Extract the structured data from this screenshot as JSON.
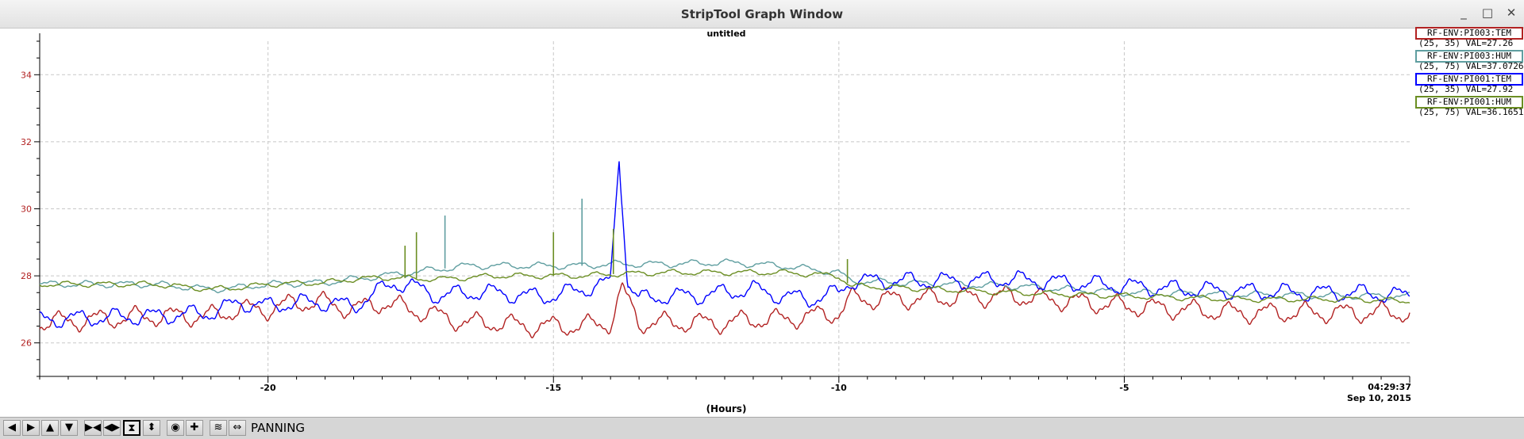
{
  "window": {
    "title": "StripTool Graph Window",
    "controls": {
      "minimize": "_",
      "maximize": "□",
      "close": "✕"
    }
  },
  "graph": {
    "title": "untitled",
    "xlabel": "(Hours)",
    "time_readout": {
      "time": "04:29:37",
      "date": "Sep 10, 2015"
    }
  },
  "legend": [
    {
      "name": "RF-ENV:PI003:TEM",
      "range": "(25, 35)",
      "value": "VAL=27.26",
      "color": "#b22222"
    },
    {
      "name": "RF-ENV:PI003:HUM",
      "range": "(25, 75)",
      "value": "VAL=37.0726",
      "color": "#5f9ea0"
    },
    {
      "name": "RF-ENV:PI001:TEM",
      "range": "(25, 35)",
      "value": "VAL=27.92",
      "color": "#0000ff"
    },
    {
      "name": "RF-ENV:PI001:HUM",
      "range": "(25, 75)",
      "value": "VAL=36.1651",
      "color": "#6b8e23"
    }
  ],
  "toolbar": {
    "buttons": [
      {
        "name": "pan-left-button",
        "glyph": "◀"
      },
      {
        "name": "pan-right-button",
        "glyph": "▶"
      },
      {
        "name": "pan-up-button",
        "glyph": "▲"
      },
      {
        "name": "pan-down-button",
        "glyph": "▼"
      },
      {
        "name": "zoom-in-x-button",
        "glyph": "▶◀"
      },
      {
        "name": "zoom-out-x-button",
        "glyph": "◀▶"
      },
      {
        "name": "zoom-in-y-button",
        "glyph": "⧗"
      },
      {
        "name": "zoom-out-y-button",
        "glyph": "⬍"
      },
      {
        "name": "auto-scale-button",
        "glyph": "◉"
      },
      {
        "name": "reset-button",
        "glyph": "✚"
      },
      {
        "name": "toggle-refresh-button",
        "glyph": "≋"
      },
      {
        "name": "pan-mode-button",
        "glyph": "⇔"
      }
    ],
    "active_button": "zoom-in-y-button",
    "mode_label": "PANNING"
  },
  "chart_data": {
    "type": "line",
    "xlabel": "(Hours)",
    "xlim": [
      -24,
      0
    ],
    "ylim": [
      25,
      35
    ],
    "x_ticks": [
      -20,
      -15,
      -10,
      -5
    ],
    "y_ticks": [
      26,
      28,
      30,
      32,
      34
    ],
    "y_tick_color": "#b22222",
    "grid": true,
    "series": [
      {
        "name": "RF-ENV:PI003:TEM",
        "color": "#b22222",
        "points": [
          [
            -24,
            26.6
          ],
          [
            -22,
            26.8
          ],
          [
            -21,
            26.8
          ],
          [
            -20.5,
            27.0
          ],
          [
            -20,
            27.0
          ],
          [
            -19.5,
            27.2
          ],
          [
            -19,
            27.2
          ],
          [
            -18.5,
            27.0
          ],
          [
            -18,
            27.2
          ],
          [
            -17.5,
            27.0
          ],
          [
            -17,
            26.8
          ],
          [
            -16.5,
            26.6
          ],
          [
            -16,
            26.6
          ],
          [
            -15.5,
            26.5
          ],
          [
            -15,
            26.5
          ],
          [
            -14.5,
            26.5
          ],
          [
            -14,
            26.6
          ],
          [
            -13.8,
            27.6
          ],
          [
            -13.5,
            26.6
          ],
          [
            -13,
            26.6
          ],
          [
            -12.5,
            26.6
          ],
          [
            -12,
            26.6
          ],
          [
            -11.5,
            26.7
          ],
          [
            -11,
            26.7
          ],
          [
            -10.5,
            26.8
          ],
          [
            -10,
            26.9
          ],
          [
            -9.8,
            27.3
          ],
          [
            -9,
            27.3
          ],
          [
            -7,
            27.4
          ],
          [
            -5,
            27.1
          ],
          [
            -4,
            27.0
          ],
          [
            -3,
            26.9
          ],
          [
            -2,
            26.9
          ],
          [
            -1,
            26.9
          ],
          [
            0,
            26.9
          ]
        ],
        "wave_amp": 0.35
      },
      {
        "name": "RF-ENV:PI003:HUM",
        "color": "#5f9ea0",
        "points": [
          [
            -24,
            27.75
          ],
          [
            -22,
            27.75
          ],
          [
            -21,
            27.6
          ],
          [
            -20.5,
            27.65
          ],
          [
            -20,
            27.75
          ],
          [
            -19,
            27.8
          ],
          [
            -18.5,
            27.9
          ],
          [
            -18,
            28.0
          ],
          [
            -17,
            28.2
          ],
          [
            -16.5,
            28.3
          ],
          [
            -16,
            28.3
          ],
          [
            -15,
            28.3
          ],
          [
            -14.5,
            28.3
          ],
          [
            -14,
            28.35
          ],
          [
            -13,
            28.35
          ],
          [
            -12,
            28.4
          ],
          [
            -11,
            28.3
          ],
          [
            -10,
            28.1
          ],
          [
            -9.8,
            27.85
          ],
          [
            -9,
            27.8
          ],
          [
            -7,
            27.7
          ],
          [
            -5,
            27.5
          ],
          [
            -3,
            27.45
          ],
          [
            -1,
            27.4
          ],
          [
            0,
            27.4
          ]
        ],
        "wave_amp": 0.12
      },
      {
        "name": "RF-ENV:PI001:TEM",
        "color": "#0000ff",
        "points": [
          [
            -24,
            26.7
          ],
          [
            -22,
            26.8
          ],
          [
            -21,
            26.9
          ],
          [
            -20.5,
            27.2
          ],
          [
            -20,
            27.1
          ],
          [
            -19.5,
            27.2
          ],
          [
            -19,
            27.2
          ],
          [
            -18.5,
            27.1
          ],
          [
            -17.8,
            27.8
          ],
          [
            -17.5,
            27.7
          ],
          [
            -17,
            27.4
          ],
          [
            -16.5,
            27.5
          ],
          [
            -16,
            27.5
          ],
          [
            -15.5,
            27.4
          ],
          [
            -15,
            27.4
          ],
          [
            -14.5,
            27.6
          ],
          [
            -14,
            27.8
          ],
          [
            -13.85,
            31.6
          ],
          [
            -13.7,
            27.8
          ],
          [
            -13.5,
            27.3
          ],
          [
            -13,
            27.4
          ],
          [
            -12.5,
            27.4
          ],
          [
            -12,
            27.5
          ],
          [
            -11.5,
            27.6
          ],
          [
            -11,
            27.4
          ],
          [
            -10.5,
            27.3
          ],
          [
            -10,
            27.5
          ],
          [
            -9.8,
            27.85
          ],
          [
            -9,
            27.85
          ],
          [
            -8,
            27.85
          ],
          [
            -7,
            27.9
          ],
          [
            -6,
            27.8
          ],
          [
            -5,
            27.7
          ],
          [
            -4,
            27.6
          ],
          [
            -3,
            27.55
          ],
          [
            -2,
            27.5
          ],
          [
            -1,
            27.5
          ],
          [
            0,
            27.4
          ]
        ],
        "wave_amp": 0.3
      },
      {
        "name": "RF-ENV:PI001:HUM",
        "color": "#6b8e23",
        "points": [
          [
            -24,
            27.75
          ],
          [
            -22,
            27.75
          ],
          [
            -21,
            27.6
          ],
          [
            -20.5,
            27.65
          ],
          [
            -20,
            27.75
          ],
          [
            -19,
            27.8
          ],
          [
            -18.5,
            27.9
          ],
          [
            -18,
            27.95
          ],
          [
            -17,
            27.9
          ],
          [
            -16.5,
            27.95
          ],
          [
            -16,
            28.0
          ],
          [
            -15,
            28.0
          ],
          [
            -14.5,
            28.0
          ],
          [
            -14,
            28.05
          ],
          [
            -13,
            28.1
          ],
          [
            -12,
            28.1
          ],
          [
            -11,
            28.1
          ],
          [
            -10,
            28.0
          ],
          [
            -9.8,
            27.7
          ],
          [
            -9,
            27.65
          ],
          [
            -7,
            27.5
          ],
          [
            -5,
            27.4
          ],
          [
            -3,
            27.3
          ],
          [
            -1,
            27.3
          ],
          [
            0,
            27.25
          ]
        ],
        "wave_amp": 0.1
      }
    ],
    "spikes": [
      {
        "series": "RF-ENV:PI001:HUM",
        "x": -17.6,
        "y": 28.9
      },
      {
        "series": "RF-ENV:PI001:HUM",
        "x": -17.4,
        "y": 29.3
      },
      {
        "series": "RF-ENV:PI003:HUM",
        "x": -16.9,
        "y": 29.8
      },
      {
        "series": "RF-ENV:PI001:HUM",
        "x": -15.0,
        "y": 29.3
      },
      {
        "series": "RF-ENV:PI003:HUM",
        "x": -14.5,
        "y": 30.3
      },
      {
        "series": "RF-ENV:PI001:HUM",
        "x": -13.95,
        "y": 29.4
      },
      {
        "series": "RF-ENV:PI001:HUM",
        "x": -9.85,
        "y": 28.5
      }
    ]
  }
}
